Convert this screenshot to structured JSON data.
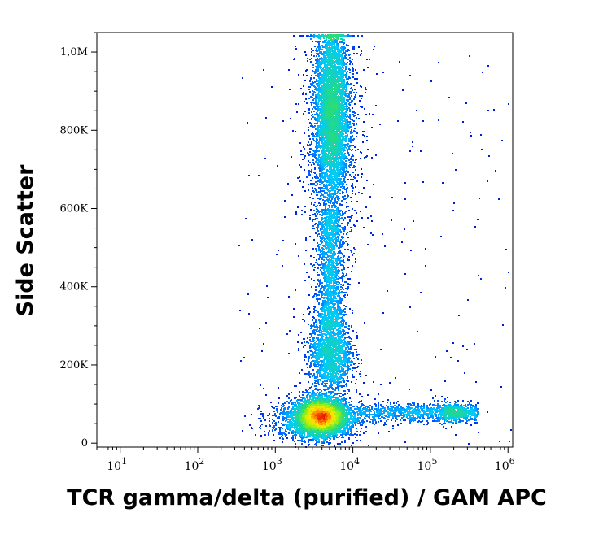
{
  "chart_data": {
    "type": "scatter",
    "subtype": "flow-cytometry density dot plot",
    "xlabel": "TCR gamma/delta (purified) / GAM APC",
    "ylabel": "Side Scatter",
    "x_scale": "log",
    "xlim": [
      5,
      1150000
    ],
    "ylim": [
      -10000,
      1050000
    ],
    "x_ticks": [
      {
        "value": 10,
        "base": "10",
        "exp": "1"
      },
      {
        "value": 100,
        "base": "10",
        "exp": "2"
      },
      {
        "value": 1000,
        "base": "10",
        "exp": "3"
      },
      {
        "value": 10000,
        "base": "10",
        "exp": "4"
      },
      {
        "value": 100000,
        "base": "10",
        "exp": "5"
      },
      {
        "value": 1000000,
        "base": "10",
        "exp": "6"
      }
    ],
    "y_ticks": [
      {
        "value": 0,
        "label": "0"
      },
      {
        "value": 200000,
        "label": "200K"
      },
      {
        "value": 400000,
        "label": "400K"
      },
      {
        "value": 600000,
        "label": "600K"
      },
      {
        "value": 800000,
        "label": "800K"
      },
      {
        "value": 1000000,
        "label": "1,0M"
      }
    ],
    "grid": false,
    "legend": "none",
    "color_scale": "density: blue (low) → cyan → green → yellow → orange/red (high)",
    "populations": [
      {
        "center_x": 3900,
        "center_y": 70000,
        "density": "highest (red/orange)"
      },
      {
        "center_x": 5000,
        "center_y": 230000,
        "density": "medium (cyan/green)"
      },
      {
        "center_x": 5200,
        "center_y": 850000,
        "density": "high (green)"
      },
      {
        "center_x": 120000,
        "center_y": 80000,
        "density": "low (blue)"
      }
    ]
  }
}
